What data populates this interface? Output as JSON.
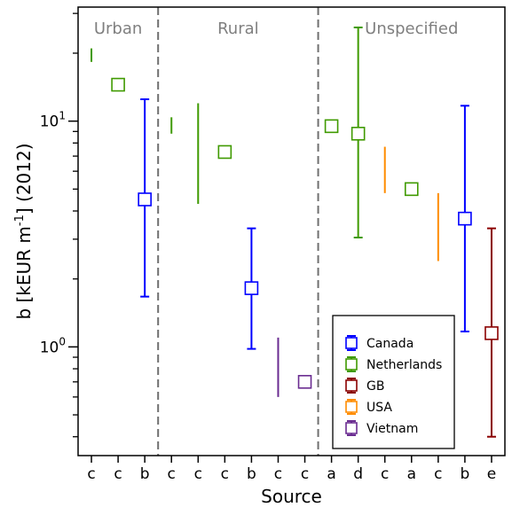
{
  "chart_data": {
    "type": "scatter",
    "title": "",
    "xlabel": "Source",
    "ylabel_parts": [
      "b [kEUR m",
      "-1",
      "] (2012)"
    ],
    "yscale": "log",
    "ylim": [
      0.33,
      32
    ],
    "y_major_ticks": [
      1,
      10
    ],
    "y_major_labels": [
      [
        "10",
        "0"
      ],
      [
        "10",
        "1"
      ]
    ],
    "y_minor_ticks": [
      0.4,
      0.5,
      0.6,
      0.7,
      0.8,
      0.9,
      2,
      3,
      4,
      5,
      6,
      7,
      8,
      9,
      20,
      30
    ],
    "categories": [
      "c",
      "c",
      "b",
      "c",
      "c",
      "c",
      "b",
      "c",
      "c",
      "a",
      "d",
      "c",
      "a",
      "c",
      "b",
      "e"
    ],
    "regions": [
      {
        "label": "Urban",
        "start": 0,
        "end": 2
      },
      {
        "label": "Rural",
        "start": 3,
        "end": 8
      },
      {
        "label": "Unspecified",
        "start": 9,
        "end": 15
      }
    ],
    "colors": {
      "Canada": "#0000ff",
      "Netherlands": "#3f9a00",
      "GB": "#8b0000",
      "USA": "#ff8c00",
      "Vietnam": "#6a2c91"
    },
    "points": [
      {
        "index": 0,
        "series": "Netherlands",
        "low": 18.3,
        "high": 21.0
      },
      {
        "index": 1,
        "series": "Netherlands",
        "value": 14.5
      },
      {
        "index": 2,
        "series": "Canada",
        "value": 4.5,
        "low": 1.67,
        "high": 12.5,
        "caps": true
      },
      {
        "index": 3,
        "series": "Netherlands",
        "low": 8.8,
        "high": 10.4
      },
      {
        "index": 4,
        "series": "Netherlands",
        "low": 4.3,
        "high": 12.0
      },
      {
        "index": 5,
        "series": "Netherlands",
        "value": 7.3
      },
      {
        "index": 6,
        "series": "Canada",
        "value": 1.82,
        "low": 0.98,
        "high": 3.35,
        "caps": true
      },
      {
        "index": 7,
        "series": "Vietnam",
        "low": 0.6,
        "high": 1.1
      },
      {
        "index": 8,
        "series": "Vietnam",
        "value": 0.7
      },
      {
        "index": 9,
        "series": "Netherlands",
        "value": 9.5
      },
      {
        "index": 10,
        "series": "Netherlands",
        "value": 8.8,
        "low": 3.05,
        "high": 26.0,
        "caps": true
      },
      {
        "index": 11,
        "series": "USA",
        "low": 4.8,
        "high": 7.7
      },
      {
        "index": 12,
        "series": "Netherlands",
        "value": 5.0
      },
      {
        "index": 13,
        "series": "USA",
        "low": 2.4,
        "high": 4.8
      },
      {
        "index": 14,
        "series": "Canada",
        "value": 3.7,
        "low": 1.17,
        "high": 11.7,
        "caps": true
      },
      {
        "index": 15,
        "series": "GB",
        "value": 1.15,
        "low": 0.4,
        "high": 3.35,
        "caps": true
      }
    ],
    "legend": {
      "position": "lower-right",
      "entries": [
        "Canada",
        "Netherlands",
        "GB",
        "USA",
        "Vietnam"
      ]
    }
  }
}
